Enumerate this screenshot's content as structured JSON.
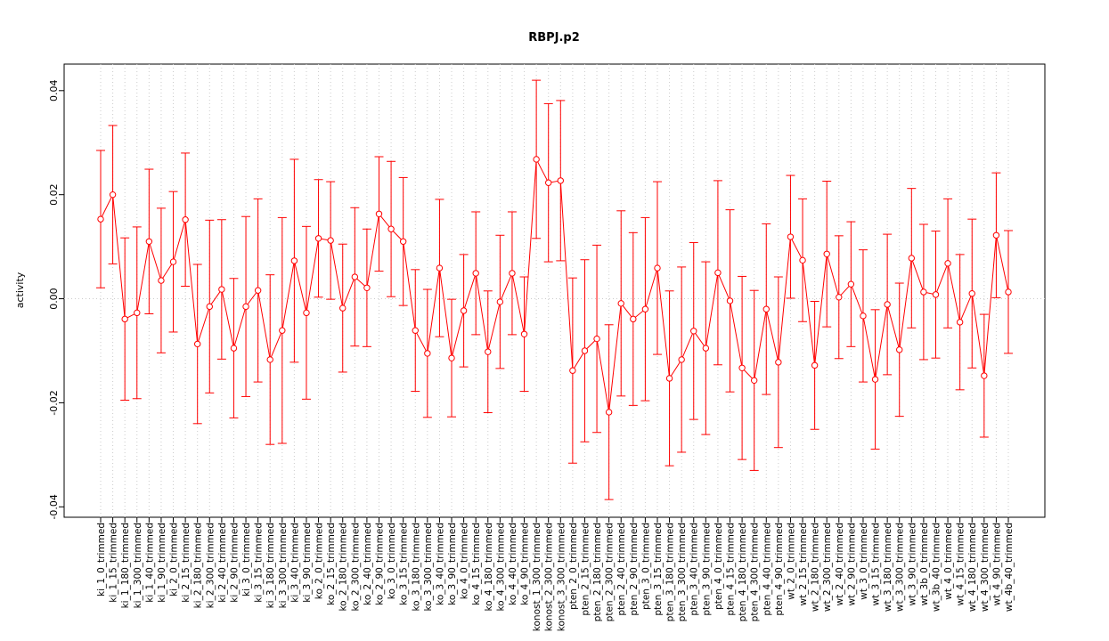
{
  "chart_data": {
    "type": "line",
    "title": "RBPJ.p2",
    "y_label": "activity",
    "categories": [
      "ki_1_0_trimmed",
      "ki_1_15_trimmed",
      "ki_1_180_trimmed",
      "ki_1_300_trimmed",
      "ki_1_40_trimmed",
      "ki_1_90_trimmed",
      "ki_2_0_trimmed",
      "ki_2_15_trimmed",
      "ki_2_180_trimmed",
      "ki_2_300_trimmed",
      "ki_2_40_trimmed",
      "ki_2_90_trimmed",
      "ki_3_0_trimmed",
      "ki_3_15_trimmed",
      "ki_3_180_trimmed",
      "ki_3_300_trimmed",
      "ki_3_40_trimmed",
      "ki_3_90_trimmed",
      "ko_2_0_trimmed",
      "ko_2_15_trimmed",
      "ko_2_180_trimmed",
      "ko_2_300_trimmed",
      "ko_2_40_trimmed",
      "ko_2_90_trimmed",
      "ko_3_0_trimmed",
      "ko_3_15_trimmed",
      "ko_3_180_trimmed",
      "ko_3_300_trimmed",
      "ko_3_40_trimmed",
      "ko_3_90_trimmed",
      "ko_4_0_trimmed",
      "ko_4_15_trimmed",
      "ko_4_180_trimmed",
      "ko_4_300_trimmed",
      "ko_4_40_trimmed",
      "ko_4_90_trimmed",
      "konost_1_300_trimmed",
      "konost_2_300_trimmed",
      "konost_3_300_trimmed",
      "pten_2_0_trimmed",
      "pten_2_15_trimmed",
      "pten_2_180_trimmed",
      "pten_2_300_trimmed",
      "pten_2_40_trimmed",
      "pten_2_90_trimmed",
      "pten_3_0_trimmed",
      "pten_3_15_trimmed",
      "pten_3_180_trimmed",
      "pten_3_300_trimmed",
      "pten_3_40_trimmed",
      "pten_3_90_trimmed",
      "pten_4_0_trimmed",
      "pten_4_15_trimmed",
      "pten_4_180_trimmed",
      "pten_4_300_trimmed",
      "pten_4_40_trimmed",
      "pten_4_90_trimmed",
      "wt_2_0_trimmed",
      "wt_2_15_trimmed",
      "wt_2_180_trimmed",
      "wt_2_300_trimmed",
      "wt_2_40_trimmed",
      "wt_2_90_trimmed",
      "wt_3_0_trimmed",
      "wt_3_15_trimmed",
      "wt_3_180_trimmed",
      "wt_3_300_trimmed",
      "wt_3_90_trimmed",
      "wt_3b_0_trimmed",
      "wt_3b_40_trimmed",
      "wt_4_0_trimmed",
      "wt_4_15_trimmed",
      "wt_4_180_trimmed",
      "wt_4_300_trimmed",
      "wt_4_90_trimmed",
      "wt_4b_40_trimmed"
    ],
    "values": [
      0.0153,
      0.02,
      -0.0039,
      -0.0027,
      0.011,
      0.0035,
      0.0071,
      0.0152,
      -0.0087,
      -0.0015,
      0.0018,
      -0.0095,
      -0.0015,
      0.0016,
      -0.0117,
      -0.0061,
      0.0073,
      -0.0027,
      0.0116,
      0.0112,
      -0.0018,
      0.0042,
      0.0021,
      0.0163,
      0.0134,
      0.011,
      -0.0061,
      -0.0105,
      0.0059,
      -0.0114,
      -0.0023,
      0.0049,
      -0.0102,
      -0.0006,
      0.0049,
      -0.0068,
      0.0268,
      0.0223,
      0.0227,
      -0.0138,
      -0.01,
      -0.0077,
      -0.0218,
      -0.0009,
      -0.0039,
      -0.002,
      0.0059,
      -0.0153,
      -0.0117,
      -0.0062,
      -0.0095,
      0.005,
      -0.0004,
      -0.0133,
      -0.0157,
      -0.002,
      -0.0122,
      0.0119,
      0.0074,
      -0.0128,
      0.0086,
      0.0003,
      0.0028,
      -0.0033,
      -0.0155,
      -0.0011,
      -0.0098,
      0.0078,
      0.0013,
      0.0008,
      0.0068,
      -0.0045,
      0.001,
      -0.0148,
      0.0122,
      0.0013
    ],
    "errors": [
      0.0132,
      0.0133,
      0.0156,
      0.0165,
      0.0139,
      0.0139,
      0.0135,
      0.0128,
      0.0153,
      0.0166,
      0.0134,
      0.0134,
      0.0173,
      0.0176,
      0.0163,
      0.0217,
      0.0195,
      0.0166,
      0.0113,
      0.0113,
      0.0123,
      0.0133,
      0.0113,
      0.011,
      0.013,
      0.0123,
      0.0117,
      0.0123,
      0.0132,
      0.0113,
      0.0108,
      0.0118,
      0.0117,
      0.0128,
      0.0118,
      0.011,
      0.0152,
      0.0152,
      0.0154,
      0.0178,
      0.0175,
      0.018,
      0.0168,
      0.0178,
      0.0166,
      0.0176,
      0.0166,
      0.0168,
      0.0178,
      0.017,
      0.0166,
      0.0177,
      0.0175,
      0.0176,
      0.0173,
      0.0164,
      0.0164,
      0.0118,
      0.0118,
      0.0123,
      0.014,
      0.0118,
      0.012,
      0.0127,
      0.0134,
      0.0135,
      0.0128,
      0.0134,
      0.013,
      0.0122,
      0.0124,
      0.013,
      0.0143,
      0.0118,
      0.012,
      0.0118
    ],
    "color": "#ff0000",
    "ylim": [
      -0.042,
      0.0451
    ],
    "yticks": [
      -0.04,
      -0.02,
      {
        "value": 0,
        "label": "0.00"
      },
      0.02,
      0.04
    ],
    "grid": true
  }
}
